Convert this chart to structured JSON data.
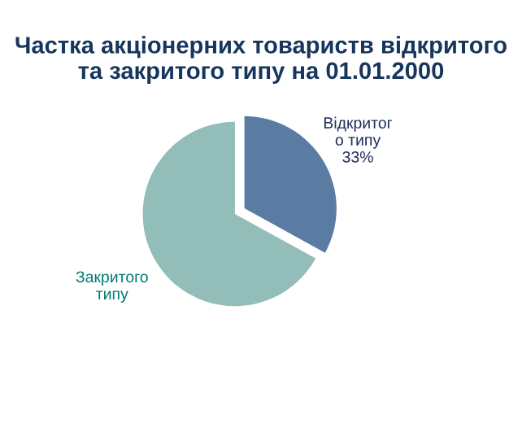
{
  "chart_data": {
    "type": "pie",
    "title": "Частка акціонерних товариств відкритого та закритого типу на 01.01.2000",
    "categories": [
      "Відкритог о типу",
      "Закритого типу"
    ],
    "values": [
      33,
      67
    ],
    "colors": [
      "#5a7ca3",
      "#93bdb8"
    ],
    "value_labels": [
      "33%",
      null
    ]
  }
}
